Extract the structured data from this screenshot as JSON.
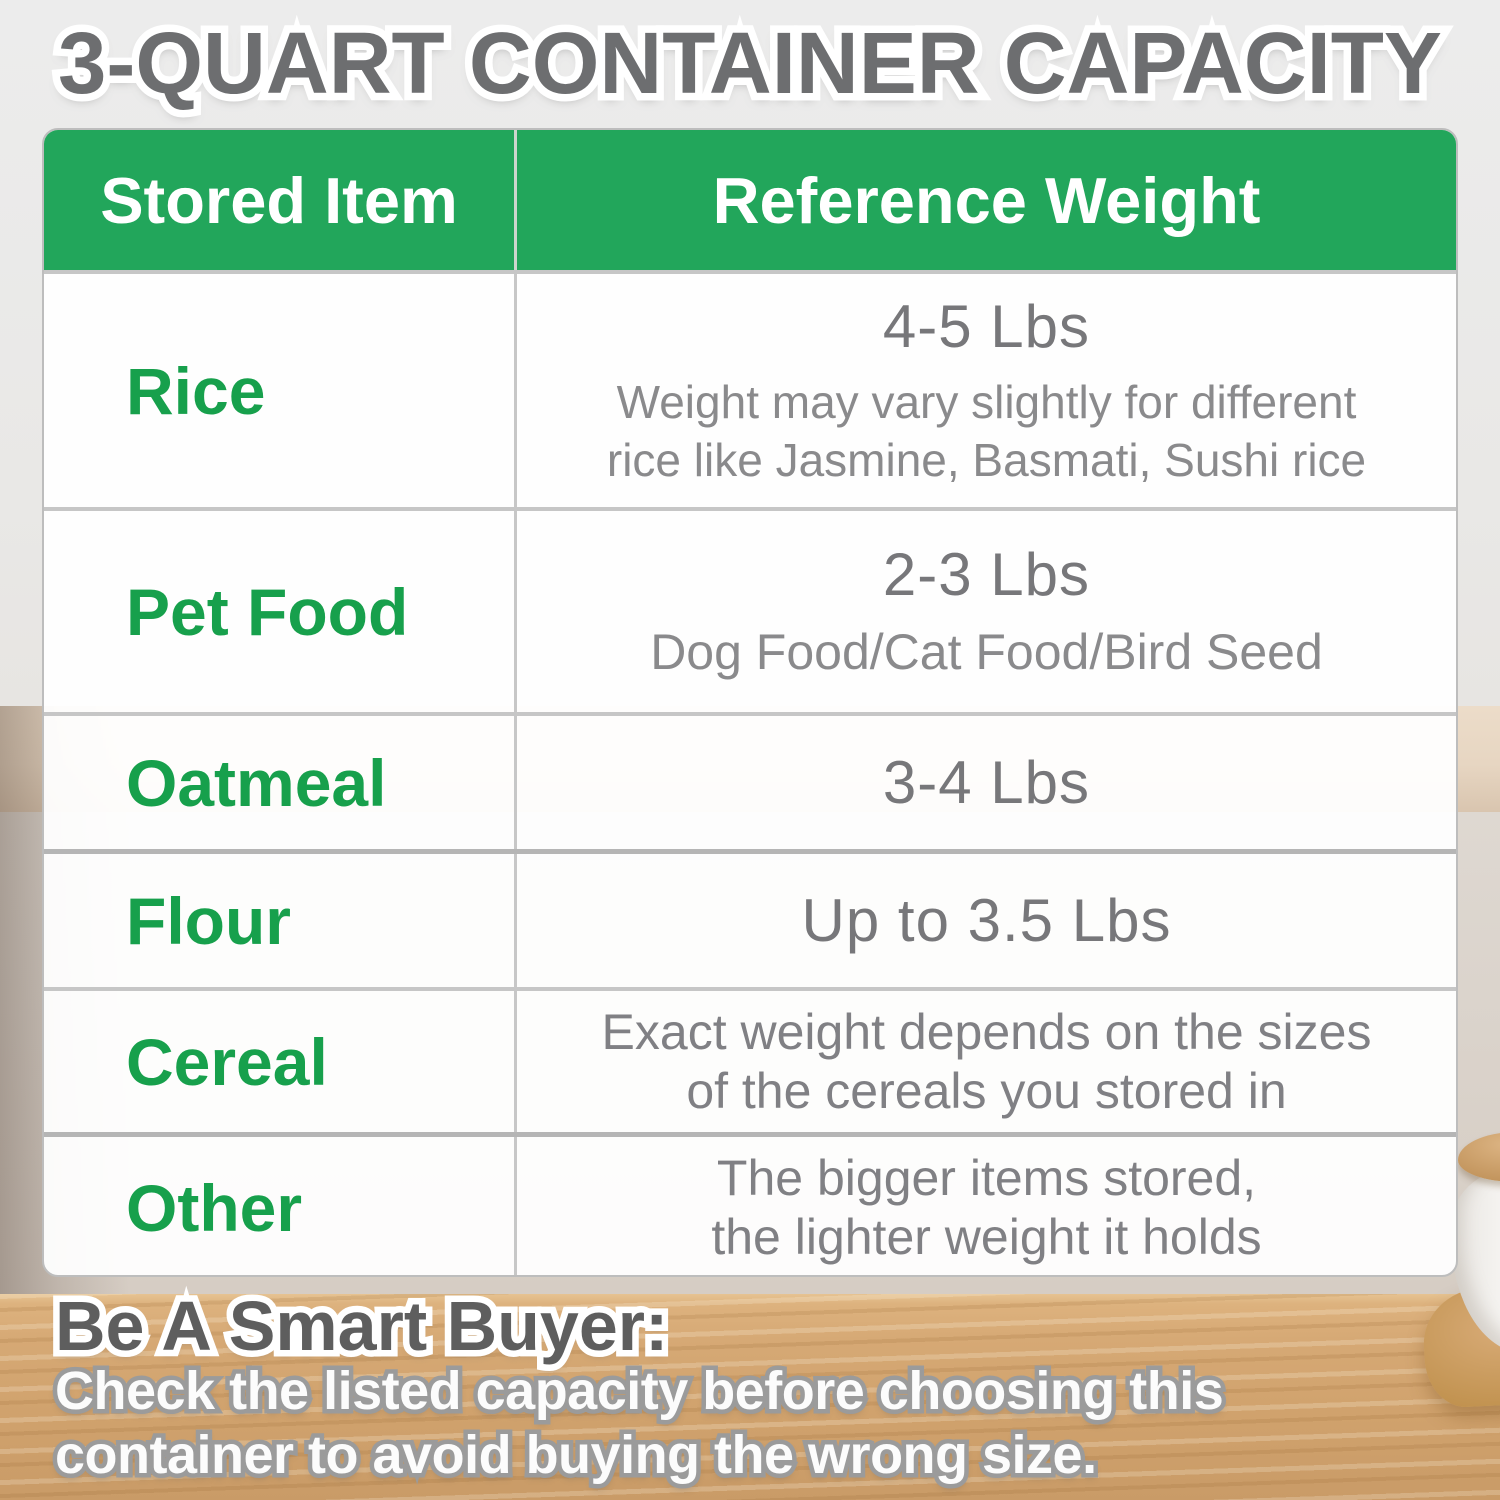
{
  "title": "3-QUART CONTAINER CAPACITY",
  "table": {
    "headers": [
      "Stored Item",
      "Reference Weight"
    ],
    "rows": [
      {
        "item": "Rice",
        "value": "4-5 Lbs",
        "note_lines": [
          "Weight may vary slightly for different",
          "rice like Jasmine, Basmati, Sushi rice"
        ]
      },
      {
        "item": "Pet Food",
        "value": "2-3 Lbs",
        "note_lines": [
          "Dog Food/Cat Food/Bird Seed"
        ]
      },
      {
        "item": "Oatmeal",
        "value": "3-4 Lbs",
        "note_lines": []
      },
      {
        "item": "Flour",
        "value": "Up to 3.5 Lbs",
        "note_lines": []
      },
      {
        "item": "Cereal",
        "value": "",
        "note_lines": [
          "Exact weight depends on the sizes",
          "of the cereals you stored in"
        ]
      },
      {
        "item": "Other",
        "value": "",
        "note_lines": [
          "The bigger items stored,",
          "the lighter weight it holds"
        ]
      }
    ]
  },
  "footer": {
    "heading": "Be A Smart Buyer:",
    "lines": [
      "Check the listed capacity before choosing this",
      "container to avoid buying the wrong size."
    ]
  },
  "colors": {
    "header_green": "#22a65b",
    "item_green": "#17a04c",
    "value_gray": "#77777a",
    "note_gray": "#8a8a8c",
    "title_gray": "#6d6e70",
    "footer_heading_gray": "#5e5e5e",
    "footer_text_white": "#fcfcfc",
    "wood_brown": "#d6a975"
  },
  "scene": {
    "objects": [
      "white ceramic jar with wooden lid",
      "wooden tray",
      "wooden countertop",
      "kitchen wall"
    ]
  }
}
